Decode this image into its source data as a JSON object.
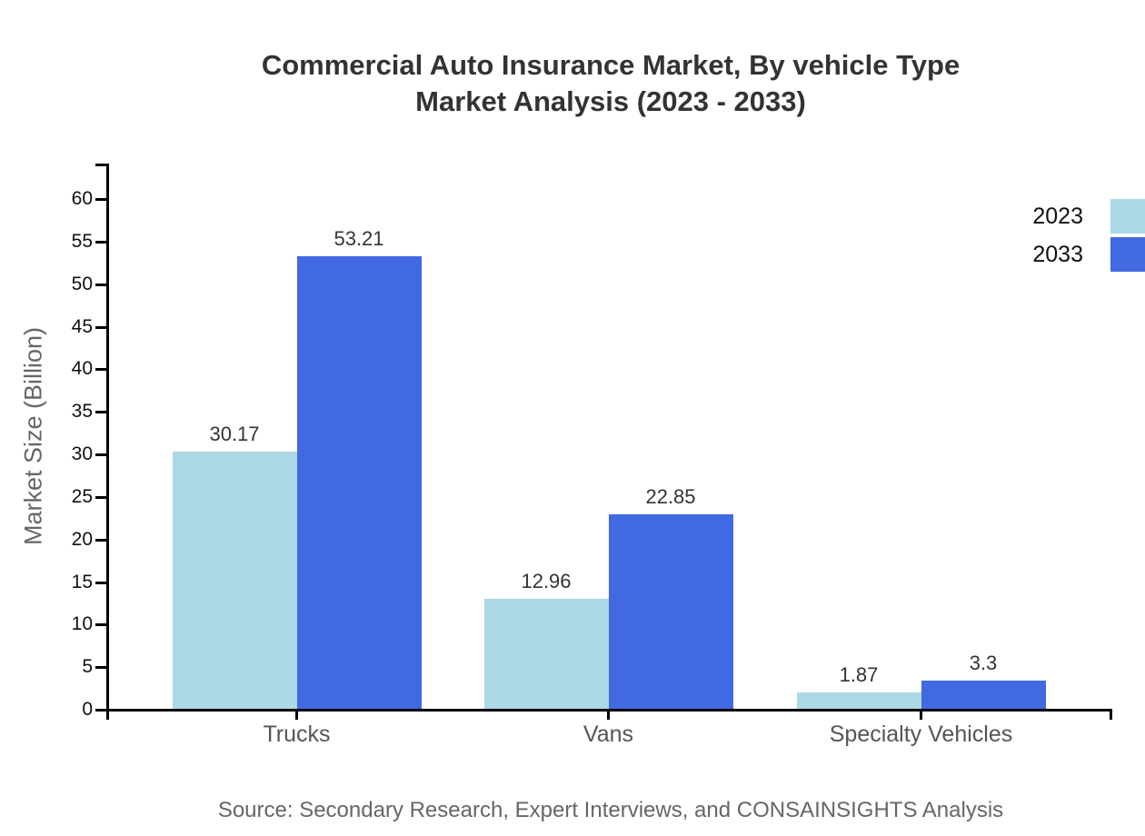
{
  "chart_data": {
    "type": "bar",
    "title_line1": "Commercial Auto Insurance Market, By vehicle Type",
    "title_line2": "Market Analysis (2023 - 2033)",
    "ylabel": "Market Size (Billion)",
    "categories": [
      "Trucks",
      "Vans",
      "Specialty Vehicles"
    ],
    "series": [
      {
        "name": "2023",
        "color": "#ADD8E6",
        "values": [
          30.17,
          12.96,
          1.87
        ],
        "labels": [
          "30.17",
          "12.96",
          "1.87"
        ]
      },
      {
        "name": "2033",
        "color": "#4169E1",
        "values": [
          53.21,
          22.85,
          3.3
        ],
        "labels": [
          "53.21",
          "22.85",
          "3.3"
        ]
      }
    ],
    "yticks": [
      0,
      5,
      10,
      15,
      20,
      25,
      30,
      35,
      40,
      45,
      50,
      55,
      60
    ],
    "ylim": [
      0,
      64
    ],
    "grid": false,
    "legend_position": "right",
    "axis_color": "#000000",
    "source": "Source: Secondary Research, Expert Interviews, and CONSAINSIGHTS Analysis"
  }
}
